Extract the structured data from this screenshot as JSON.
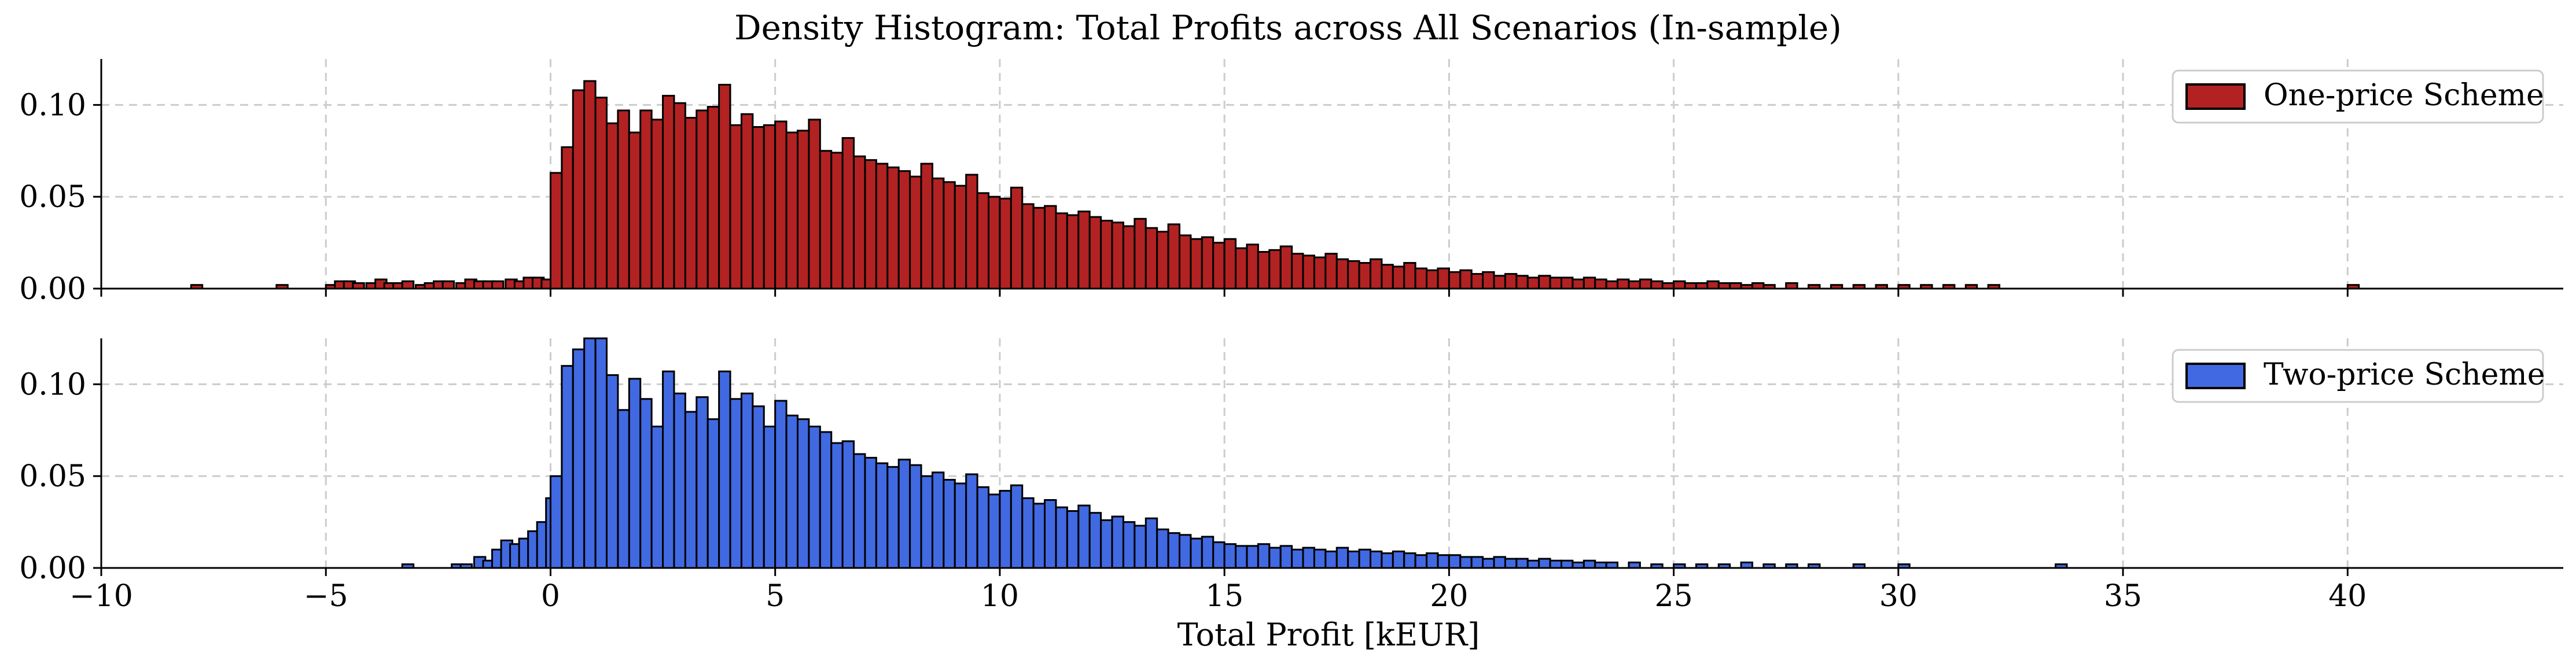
{
  "chart_data": {
    "type": "histogram",
    "title": "Density Histogram: Total Profits across All Scenarios (In-sample)",
    "xlabel": "Total Profit [kEUR]",
    "ylabel": "",
    "xlim": [
      -10,
      44.8
    ],
    "ylim": [
      0,
      0.125
    ],
    "xticks": [
      -10,
      -5,
      0,
      5,
      10,
      15,
      20,
      25,
      30,
      35,
      40
    ],
    "xtick_labels": [
      "−10",
      "−5",
      "0",
      "5",
      "10",
      "15",
      "20",
      "25",
      "30",
      "35",
      "40"
    ],
    "yticks": [
      0.0,
      0.05,
      0.1
    ],
    "ytick_labels": [
      "0.00",
      "0.05",
      "0.10"
    ],
    "grid": true,
    "legend_position": "top-right",
    "bin_width": 0.25,
    "panels": [
      {
        "series_name": "One-price Scheme",
        "color": "#b22222",
        "points": [
          [
            -8.0,
            0.002
          ],
          [
            -6.1,
            0.002
          ],
          [
            -5.0,
            0.002
          ],
          [
            -4.8,
            0.004
          ],
          [
            -4.6,
            0.004
          ],
          [
            -4.4,
            0.003
          ],
          [
            -4.1,
            0.003
          ],
          [
            -3.9,
            0.005
          ],
          [
            -3.7,
            0.003
          ],
          [
            -3.5,
            0.003
          ],
          [
            -3.3,
            0.004
          ],
          [
            -3.0,
            0.002
          ],
          [
            -2.8,
            0.003
          ],
          [
            -2.6,
            0.004
          ],
          [
            -2.4,
            0.004
          ],
          [
            -2.1,
            0.003
          ],
          [
            -1.9,
            0.005
          ],
          [
            -1.7,
            0.004
          ],
          [
            -1.5,
            0.004
          ],
          [
            -1.3,
            0.004
          ],
          [
            -1.0,
            0.005
          ],
          [
            -0.8,
            0.004
          ],
          [
            -0.6,
            0.006
          ],
          [
            -0.4,
            0.006
          ],
          [
            -0.2,
            0.005
          ],
          [
            0.0,
            0.063
          ],
          [
            0.25,
            0.077
          ],
          [
            0.5,
            0.108
          ],
          [
            0.75,
            0.113
          ],
          [
            1.0,
            0.104
          ],
          [
            1.25,
            0.09
          ],
          [
            1.5,
            0.097
          ],
          [
            1.75,
            0.085
          ],
          [
            2.0,
            0.097
          ],
          [
            2.25,
            0.092
          ],
          [
            2.5,
            0.105
          ],
          [
            2.75,
            0.101
          ],
          [
            3.0,
            0.093
          ],
          [
            3.25,
            0.097
          ],
          [
            3.5,
            0.099
          ],
          [
            3.75,
            0.111
          ],
          [
            4.0,
            0.089
          ],
          [
            4.25,
            0.095
          ],
          [
            4.5,
            0.088
          ],
          [
            4.75,
            0.089
          ],
          [
            5.0,
            0.091
          ],
          [
            5.25,
            0.085
          ],
          [
            5.5,
            0.086
          ],
          [
            5.75,
            0.092
          ],
          [
            6.0,
            0.075
          ],
          [
            6.25,
            0.074
          ],
          [
            6.5,
            0.082
          ],
          [
            6.75,
            0.072
          ],
          [
            7.0,
            0.07
          ],
          [
            7.25,
            0.068
          ],
          [
            7.5,
            0.066
          ],
          [
            7.75,
            0.064
          ],
          [
            8.0,
            0.061
          ],
          [
            8.25,
            0.068
          ],
          [
            8.5,
            0.06
          ],
          [
            8.75,
            0.058
          ],
          [
            9.0,
            0.056
          ],
          [
            9.25,
            0.062
          ],
          [
            9.5,
            0.052
          ],
          [
            9.75,
            0.05
          ],
          [
            10.0,
            0.049
          ],
          [
            10.25,
            0.055
          ],
          [
            10.5,
            0.046
          ],
          [
            10.75,
            0.044
          ],
          [
            11.0,
            0.045
          ],
          [
            11.25,
            0.041
          ],
          [
            11.5,
            0.04
          ],
          [
            11.75,
            0.042
          ],
          [
            12.0,
            0.039
          ],
          [
            12.25,
            0.037
          ],
          [
            12.5,
            0.036
          ],
          [
            12.75,
            0.034
          ],
          [
            13.0,
            0.038
          ],
          [
            13.25,
            0.033
          ],
          [
            13.5,
            0.031
          ],
          [
            13.75,
            0.035
          ],
          [
            14.0,
            0.029
          ],
          [
            14.25,
            0.027
          ],
          [
            14.5,
            0.028
          ],
          [
            14.75,
            0.025
          ],
          [
            15.0,
            0.027
          ],
          [
            15.25,
            0.022
          ],
          [
            15.5,
            0.024
          ],
          [
            15.75,
            0.02
          ],
          [
            16.0,
            0.021
          ],
          [
            16.25,
            0.023
          ],
          [
            16.5,
            0.019
          ],
          [
            16.75,
            0.018
          ],
          [
            17.0,
            0.017
          ],
          [
            17.25,
            0.019
          ],
          [
            17.5,
            0.016
          ],
          [
            17.75,
            0.015
          ],
          [
            18.0,
            0.014
          ],
          [
            18.25,
            0.016
          ],
          [
            18.5,
            0.013
          ],
          [
            18.75,
            0.012
          ],
          [
            19.0,
            0.014
          ],
          [
            19.25,
            0.011
          ],
          [
            19.5,
            0.01
          ],
          [
            19.75,
            0.011
          ],
          [
            20.0,
            0.009
          ],
          [
            20.25,
            0.01
          ],
          [
            20.5,
            0.008
          ],
          [
            20.75,
            0.009
          ],
          [
            21.0,
            0.007
          ],
          [
            21.25,
            0.008
          ],
          [
            21.5,
            0.007
          ],
          [
            21.75,
            0.006
          ],
          [
            22.0,
            0.007
          ],
          [
            22.25,
            0.006
          ],
          [
            22.5,
            0.006
          ],
          [
            22.75,
            0.005
          ],
          [
            23.0,
            0.006
          ],
          [
            23.25,
            0.005
          ],
          [
            23.5,
            0.004
          ],
          [
            23.75,
            0.005
          ],
          [
            24.0,
            0.004
          ],
          [
            24.25,
            0.005
          ],
          [
            24.5,
            0.004
          ],
          [
            24.75,
            0.003
          ],
          [
            25.0,
            0.004
          ],
          [
            25.25,
            0.003
          ],
          [
            25.5,
            0.003
          ],
          [
            25.75,
            0.004
          ],
          [
            26.0,
            0.003
          ],
          [
            26.25,
            0.003
          ],
          [
            26.5,
            0.002
          ],
          [
            26.75,
            0.003
          ],
          [
            27.0,
            0.002
          ],
          [
            27.5,
            0.003
          ],
          [
            28.0,
            0.002
          ],
          [
            28.5,
            0.002
          ],
          [
            29.0,
            0.002
          ],
          [
            29.5,
            0.002
          ],
          [
            30.0,
            0.002
          ],
          [
            30.5,
            0.002
          ],
          [
            31.0,
            0.002
          ],
          [
            31.5,
            0.002
          ],
          [
            32.0,
            0.002
          ],
          [
            40.0,
            0.002
          ]
        ]
      },
      {
        "series_name": "Two-price Scheme",
        "color": "#4169e1",
        "points": [
          [
            -3.3,
            0.002
          ],
          [
            -2.2,
            0.002
          ],
          [
            -2.0,
            0.002
          ],
          [
            -1.7,
            0.006
          ],
          [
            -1.5,
            0.004
          ],
          [
            -1.3,
            0.01
          ],
          [
            -1.1,
            0.015
          ],
          [
            -0.9,
            0.013
          ],
          [
            -0.7,
            0.016
          ],
          [
            -0.5,
            0.02
          ],
          [
            -0.3,
            0.025
          ],
          [
            -0.1,
            0.038
          ],
          [
            0.0,
            0.05
          ],
          [
            0.25,
            0.11
          ],
          [
            0.5,
            0.119
          ],
          [
            0.75,
            0.125
          ],
          [
            1.0,
            0.125
          ],
          [
            1.25,
            0.105
          ],
          [
            1.5,
            0.086
          ],
          [
            1.75,
            0.103
          ],
          [
            2.0,
            0.092
          ],
          [
            2.25,
            0.077
          ],
          [
            2.5,
            0.107
          ],
          [
            2.75,
            0.095
          ],
          [
            3.0,
            0.085
          ],
          [
            3.25,
            0.093
          ],
          [
            3.5,
            0.081
          ],
          [
            3.75,
            0.107
          ],
          [
            4.0,
            0.092
          ],
          [
            4.25,
            0.095
          ],
          [
            4.5,
            0.088
          ],
          [
            4.75,
            0.077
          ],
          [
            5.0,
            0.091
          ],
          [
            5.25,
            0.083
          ],
          [
            5.5,
            0.081
          ],
          [
            5.75,
            0.077
          ],
          [
            6.0,
            0.074
          ],
          [
            6.25,
            0.068
          ],
          [
            6.5,
            0.069
          ],
          [
            6.75,
            0.062
          ],
          [
            7.0,
            0.06
          ],
          [
            7.25,
            0.057
          ],
          [
            7.5,
            0.055
          ],
          [
            7.75,
            0.059
          ],
          [
            8.0,
            0.056
          ],
          [
            8.25,
            0.05
          ],
          [
            8.5,
            0.052
          ],
          [
            8.75,
            0.048
          ],
          [
            9.0,
            0.046
          ],
          [
            9.25,
            0.051
          ],
          [
            9.5,
            0.044
          ],
          [
            9.75,
            0.04
          ],
          [
            10.0,
            0.042
          ],
          [
            10.25,
            0.045
          ],
          [
            10.5,
            0.038
          ],
          [
            10.75,
            0.035
          ],
          [
            11.0,
            0.037
          ],
          [
            11.25,
            0.033
          ],
          [
            11.5,
            0.031
          ],
          [
            11.75,
            0.034
          ],
          [
            12.0,
            0.03
          ],
          [
            12.25,
            0.026
          ],
          [
            12.5,
            0.028
          ],
          [
            12.75,
            0.025
          ],
          [
            13.0,
            0.023
          ],
          [
            13.25,
            0.027
          ],
          [
            13.5,
            0.021
          ],
          [
            13.75,
            0.019
          ],
          [
            14.0,
            0.018
          ],
          [
            14.25,
            0.016
          ],
          [
            14.5,
            0.017
          ],
          [
            14.75,
            0.014
          ],
          [
            15.0,
            0.013
          ],
          [
            15.25,
            0.012
          ],
          [
            15.5,
            0.012
          ],
          [
            15.75,
            0.013
          ],
          [
            16.0,
            0.011
          ],
          [
            16.25,
            0.012
          ],
          [
            16.5,
            0.01
          ],
          [
            16.75,
            0.011
          ],
          [
            17.0,
            0.01
          ],
          [
            17.25,
            0.009
          ],
          [
            17.5,
            0.011
          ],
          [
            17.75,
            0.009
          ],
          [
            18.0,
            0.01
          ],
          [
            18.25,
            0.009
          ],
          [
            18.5,
            0.008
          ],
          [
            18.75,
            0.009
          ],
          [
            19.0,
            0.008
          ],
          [
            19.25,
            0.007
          ],
          [
            19.5,
            0.008
          ],
          [
            19.75,
            0.007
          ],
          [
            20.0,
            0.007
          ],
          [
            20.25,
            0.006
          ],
          [
            20.5,
            0.006
          ],
          [
            20.75,
            0.005
          ],
          [
            21.0,
            0.006
          ],
          [
            21.25,
            0.005
          ],
          [
            21.5,
            0.005
          ],
          [
            21.75,
            0.004
          ],
          [
            22.0,
            0.005
          ],
          [
            22.25,
            0.004
          ],
          [
            22.5,
            0.004
          ],
          [
            22.75,
            0.003
          ],
          [
            23.0,
            0.004
          ],
          [
            23.25,
            0.003
          ],
          [
            23.5,
            0.003
          ],
          [
            24.0,
            0.003
          ],
          [
            24.5,
            0.002
          ],
          [
            25.0,
            0.002
          ],
          [
            25.5,
            0.002
          ],
          [
            26.0,
            0.002
          ],
          [
            26.5,
            0.003
          ],
          [
            27.0,
            0.002
          ],
          [
            27.5,
            0.002
          ],
          [
            28.0,
            0.002
          ],
          [
            29.0,
            0.002
          ],
          [
            30.0,
            0.002
          ],
          [
            33.5,
            0.002
          ]
        ]
      }
    ]
  }
}
